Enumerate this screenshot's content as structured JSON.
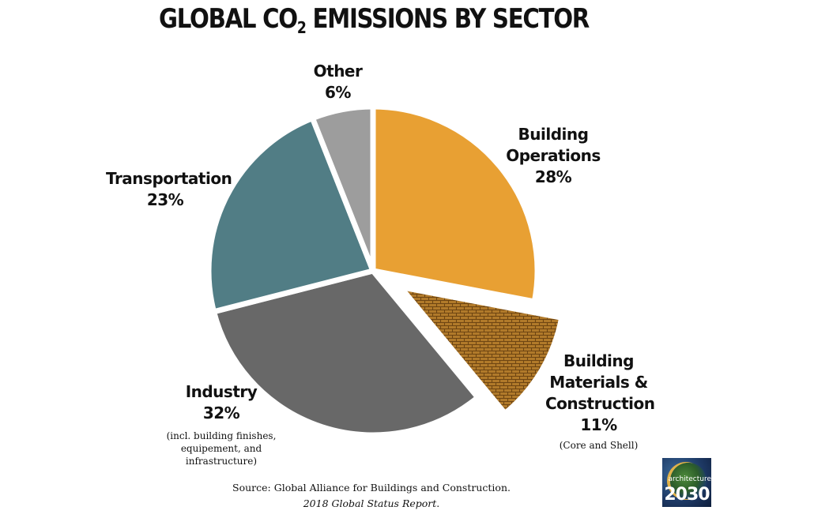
{
  "chart_data": {
    "type": "pie",
    "title_main": "GLOBAL CO",
    "title_sub": "2",
    "title_rest": " EMISSIONS BY SECTOR",
    "slices": [
      {
        "label": "Building Operations",
        "line1": "Building",
        "line2": "Operations",
        "pct_text": "28%",
        "value": 28,
        "color": "#e8a033",
        "exploded": false
      },
      {
        "label": "Building Materials & Construction",
        "line1": "Building",
        "line2": "Materials &",
        "line3": "Construction",
        "pct_text": "11%",
        "value": 11,
        "color": "#9a6a24",
        "pattern": "brick",
        "exploded": true,
        "note": "(Core and Shell)"
      },
      {
        "label": "Industry",
        "line1": "Industry",
        "pct_text": "32%",
        "value": 32,
        "color": "#686868",
        "exploded": false,
        "note1": "(incl. building finishes,",
        "note2": "equipement, and",
        "note3": "infrastructure)"
      },
      {
        "label": "Transportation",
        "line1": "Transportation",
        "pct_text": "23%",
        "value": 23,
        "color": "#517d85",
        "exploded": false
      },
      {
        "label": "Other",
        "line1": "Other",
        "pct_text": "6%",
        "value": 6,
        "color": "#9d9d9d",
        "exploded": false
      }
    ],
    "source_line1": "Source:  Global Alliance for Buildings and Construction.",
    "source_line2": "2018 Global Status Report",
    "source_period": "."
  },
  "logo": {
    "word": "architecture",
    "number": "2030"
  }
}
